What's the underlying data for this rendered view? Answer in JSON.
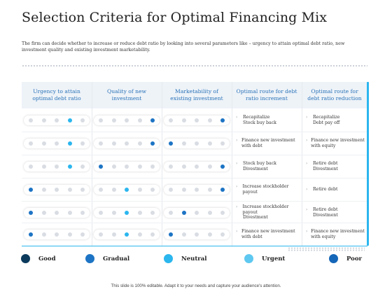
{
  "title": "Selection Criteria for Optimal Financing Mix",
  "description": "The firm can decide whether to increase or reduce debt ratio by looking into several parameters like – urgency to attain optimal debt ratio, new investment quality and existing investment marketability.",
  "columns": [
    "Urgency to attain optimal debt ratio",
    "Quality of new investment",
    "Marketability of existing investment",
    "Optimal route for debt ratio increment",
    "Optimal route for debt ratio reduction"
  ],
  "rows": [
    {
      "urgency": 3,
      "quality": 4,
      "marketability": 4,
      "increment": [
        "Recapitalize",
        "Stock buy back"
      ],
      "reduction": [
        "Recapitalize",
        "Debt pay off"
      ]
    },
    {
      "urgency": 3,
      "quality": 4,
      "marketability": 0,
      "increment": [
        "Finance new investment with debt"
      ],
      "reduction": [
        "Finance new investment with equity"
      ]
    },
    {
      "urgency": 3,
      "quality": 0,
      "marketability": 4,
      "increment": [
        "Stock buy back",
        "Divestment"
      ],
      "reduction": [
        "Retire debt",
        "Divestment"
      ]
    },
    {
      "urgency": 0,
      "quality": 2,
      "marketability": 4,
      "increment": [
        "Increase stockholder payout"
      ],
      "reduction": [
        "Retire debt"
      ]
    },
    {
      "urgency": 0,
      "quality": 2,
      "marketability": 1,
      "increment": [
        "Increase stockholder payout",
        "Divestment"
      ],
      "reduction": [
        "Retire debt",
        "Divestment"
      ]
    },
    {
      "urgency": 0,
      "quality": 2,
      "marketability": 0,
      "increment": [
        "Finance new investment with debt"
      ],
      "reduction": [
        "Finance new investment with equity"
      ]
    }
  ],
  "legend": [
    {
      "label": "Good",
      "color": "#0b3a5c"
    },
    {
      "label": "Gradual",
      "color": "#1d74c4"
    },
    {
      "label": "Neutral",
      "color": "#2bb6ee"
    },
    {
      "label": "Urgent",
      "color": "#5ec8f0"
    },
    {
      "label": "Poor",
      "color": "#1466b8"
    }
  ],
  "colors": {
    "accent": "#2bb6ee",
    "primary": "#1d74c4",
    "header_text": "#2a72b8"
  },
  "footer": "This slide is 100% editable. Adapt it to your needs and capture your audience's attention."
}
